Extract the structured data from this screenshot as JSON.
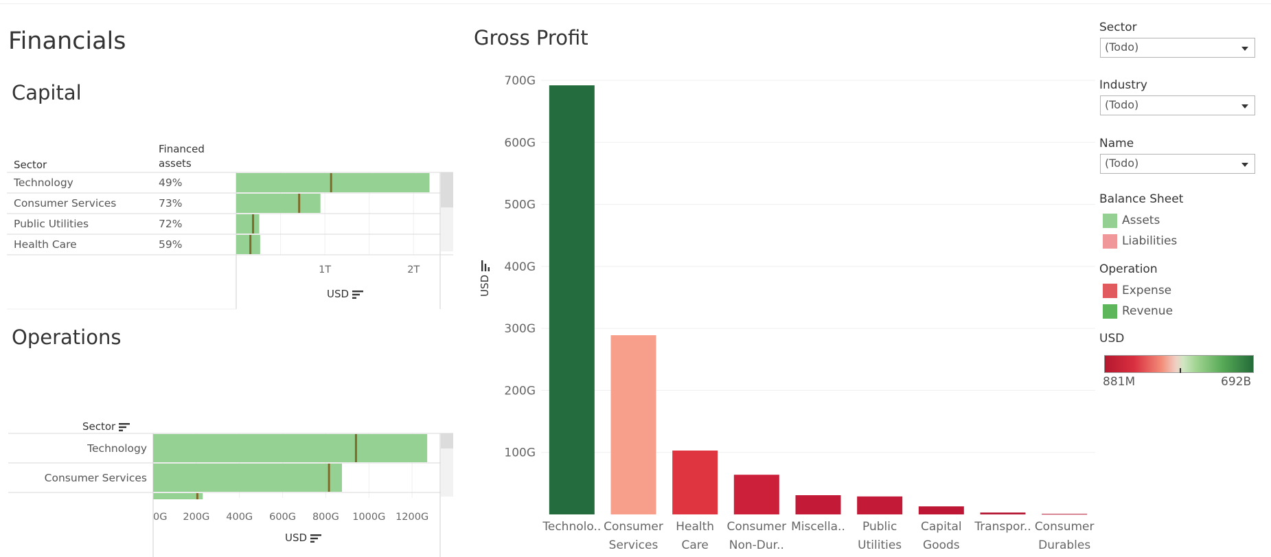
{
  "dashboard": {
    "title": "Financials"
  },
  "capital": {
    "title": "Capital",
    "col_sector": "Sector",
    "col_financed_line1": "Financed",
    "col_financed_line2": "assets",
    "rows": [
      {
        "sector": "Technology",
        "financed": "49%",
        "assets": 2.18,
        "reference": 1.07
      },
      {
        "sector": "Consumer Services",
        "financed": "73%",
        "assets": 0.95,
        "reference": 0.71
      },
      {
        "sector": "Public Utilities",
        "financed": "72%",
        "assets": 0.26,
        "reference": 0.19
      },
      {
        "sector": "Health Care",
        "financed": "59%",
        "assets": 0.27,
        "reference": 0.16
      }
    ],
    "axis_max": 2.3,
    "ticks": [
      {
        "value": 1,
        "label": "1T"
      },
      {
        "value": 2,
        "label": "2T"
      }
    ],
    "axis_title": "USD"
  },
  "operations": {
    "title": "Operations",
    "col_sector": "Sector",
    "rows": [
      {
        "sector": "Technology",
        "value": 1270,
        "reference": 940
      },
      {
        "sector": "Consumer Services",
        "value": 875,
        "reference": 815
      },
      {
        "sector": "",
        "value": 230,
        "reference": 205
      }
    ],
    "axis_max": 1330,
    "ticks": [
      {
        "value": 0,
        "label": "0G"
      },
      {
        "value": 200,
        "label": "200G"
      },
      {
        "value": 400,
        "label": "400G"
      },
      {
        "value": 600,
        "label": "600G"
      },
      {
        "value": 800,
        "label": "800G"
      },
      {
        "value": 1000,
        "label": "1000G"
      },
      {
        "value": 1200,
        "label": "1200G"
      }
    ],
    "axis_title": "USD"
  },
  "chart_data": {
    "type": "bar",
    "title": "Gross Profit",
    "ylabel": "USD",
    "ylim": [
      0,
      700
    ],
    "ytick_labels": [
      "100G",
      "200G",
      "300G",
      "400G",
      "500G",
      "600G",
      "700G"
    ],
    "categories": [
      [
        "Technolo.."
      ],
      [
        "Consumer",
        "Services"
      ],
      [
        "Health",
        "Care"
      ],
      [
        "Consumer",
        "Non-Dur.."
      ],
      [
        "Miscella.."
      ],
      [
        "Public",
        "Utilities"
      ],
      [
        "Capital",
        "Goods"
      ],
      [
        "Transpor.."
      ],
      [
        "Consumer",
        "Durables"
      ]
    ],
    "values": [
      692,
      289,
      103,
      64,
      31,
      29,
      13,
      3,
      0.881
    ],
    "colors": [
      "#246b3e",
      "#f89f8b",
      "#de3541",
      "#cc1f3a",
      "#c21a37",
      "#c21a37",
      "#bd1735",
      "#b31530",
      "#b31530"
    ],
    "grid": true
  },
  "filters": [
    {
      "label": "Sector",
      "value": "(Todo)"
    },
    {
      "label": "Industry",
      "value": "(Todo)"
    },
    {
      "label": "Name",
      "value": "(Todo)"
    }
  ],
  "legend_balance": {
    "title": "Balance Sheet",
    "items": [
      {
        "label": "Assets",
        "color": "#95d093"
      },
      {
        "label": "Liabilities",
        "color": "#f0979a"
      }
    ]
  },
  "legend_operation": {
    "title": "Operation",
    "items": [
      {
        "label": "Expense",
        "color": "#e05a5e"
      },
      {
        "label": "Revenue",
        "color": "#5db65a"
      }
    ]
  },
  "legend_usd": {
    "title": "USD",
    "min_label": "881M",
    "max_label": "692B"
  },
  "colors": {
    "bar_green": "#94d193",
    "ref_line": "#7f6a2c"
  }
}
